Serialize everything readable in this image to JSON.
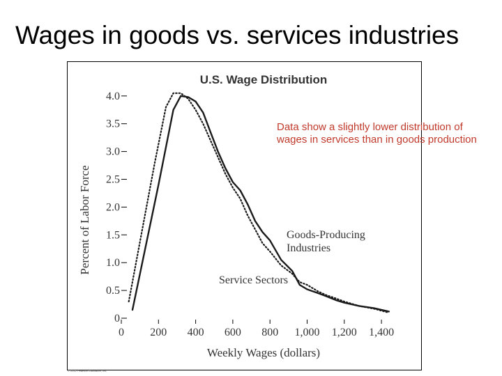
{
  "slide": {
    "title": "Wages in goods vs. services industries",
    "annotation": "Data show a slightly lower distribution of wages in services than in goods production",
    "copyright": "© 2012 Pearson Education, Inc."
  },
  "colors": {
    "annotation": "#c0392b",
    "axis": "#000000",
    "series": "#1a1a1a"
  },
  "chart_data": {
    "type": "line",
    "title": "U.S. Wage Distribution",
    "xlabel": "Weekly Wages (dollars)",
    "ylabel": "Percent of Labor Force",
    "xlim": [
      0,
      1500
    ],
    "ylim": [
      0,
      4.0
    ],
    "x_ticks": [
      "0",
      "200",
      "400",
      "600",
      "800",
      "1,000",
      "1,200",
      "1,400"
    ],
    "y_ticks": [
      "0",
      "0.5",
      "1.0",
      "1.5",
      "2.0",
      "2.5",
      "3.0",
      "3.5",
      "4.0"
    ],
    "grid": false,
    "series": [
      {
        "name": "Goods-Producing Industries",
        "style": "solid",
        "x": [
          60,
          200,
          280,
          320,
          360,
          400,
          440,
          480,
          520,
          560,
          600,
          640,
          680,
          720,
          760,
          800,
          860,
          920,
          960,
          1000,
          1060,
          1100,
          1160,
          1200,
          1240,
          1280,
          1360,
          1440
        ],
        "y": [
          0.15,
          2.4,
          3.75,
          4.0,
          3.98,
          3.9,
          3.7,
          3.35,
          3.0,
          2.7,
          2.45,
          2.3,
          2.05,
          1.75,
          1.55,
          1.4,
          1.05,
          0.85,
          0.6,
          0.52,
          0.45,
          0.4,
          0.32,
          0.28,
          0.25,
          0.22,
          0.18,
          0.12
        ]
      },
      {
        "name": "Service Sectors",
        "style": "dotted",
        "x": [
          40,
          180,
          240,
          280,
          320,
          360,
          400,
          440,
          480,
          520,
          560,
          600,
          640,
          680,
          720,
          760,
          800,
          860,
          920,
          960,
          1000,
          1060,
          1100,
          1160,
          1200,
          1240,
          1280,
          1360,
          1440
        ],
        "y": [
          0.3,
          2.8,
          3.8,
          4.05,
          4.05,
          3.95,
          3.75,
          3.5,
          3.2,
          2.9,
          2.6,
          2.35,
          2.15,
          1.85,
          1.6,
          1.35,
          1.2,
          0.95,
          0.8,
          0.65,
          0.6,
          0.48,
          0.42,
          0.35,
          0.3,
          0.26,
          0.22,
          0.17,
          0.1
        ]
      }
    ]
  }
}
